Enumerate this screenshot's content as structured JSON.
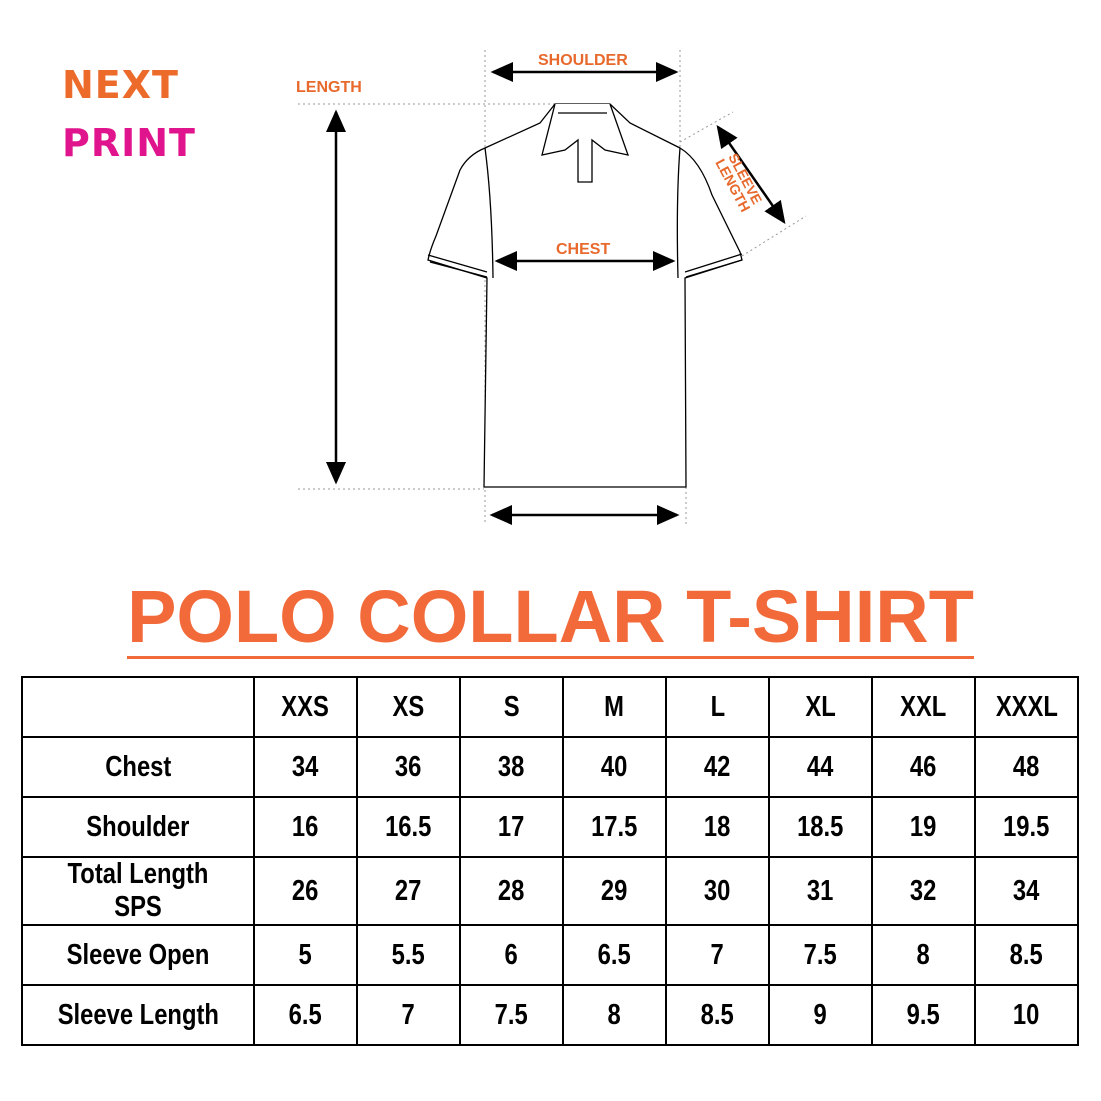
{
  "logo": {
    "line1": "NEXT",
    "line2": "PRINT",
    "colors": {
      "orange": "#ec6a2a",
      "magenta": "#e0148c"
    }
  },
  "diagram": {
    "labels": {
      "shoulder": "SHOULDER",
      "length": "LENGTH",
      "sleeve_length": "SLEEVE LENGTH",
      "sleeve_line1": "SLEEVE",
      "sleeve_line2": "LENGTH",
      "chest": "CHEST"
    },
    "label_color": "#e8692c"
  },
  "title": "POLO COLLAR T-SHIRT",
  "title_color": "#f26a3a",
  "table": {
    "sizes": [
      "XXS",
      "XS",
      "S",
      "M",
      "L",
      "XL",
      "XXL",
      "XXXL"
    ],
    "rows": [
      {
        "label": "Chest",
        "values": [
          "34",
          "36",
          "38",
          "40",
          "42",
          "44",
          "46",
          "48"
        ]
      },
      {
        "label": "Shoulder",
        "values": [
          "16",
          "16.5",
          "17",
          "17.5",
          "18",
          "18.5",
          "19",
          "19.5"
        ]
      },
      {
        "label": "Total Length SPS",
        "values": [
          "26",
          "27",
          "28",
          "29",
          "30",
          "31",
          "32",
          "34"
        ]
      },
      {
        "label": "Sleeve Open",
        "values": [
          "5",
          "5.5",
          "6",
          "6.5",
          "7",
          "7.5",
          "8",
          "8.5"
        ]
      },
      {
        "label": "Sleeve Length",
        "values": [
          "6.5",
          "7",
          "7.5",
          "8",
          "8.5",
          "9",
          "9.5",
          "10"
        ]
      }
    ]
  }
}
